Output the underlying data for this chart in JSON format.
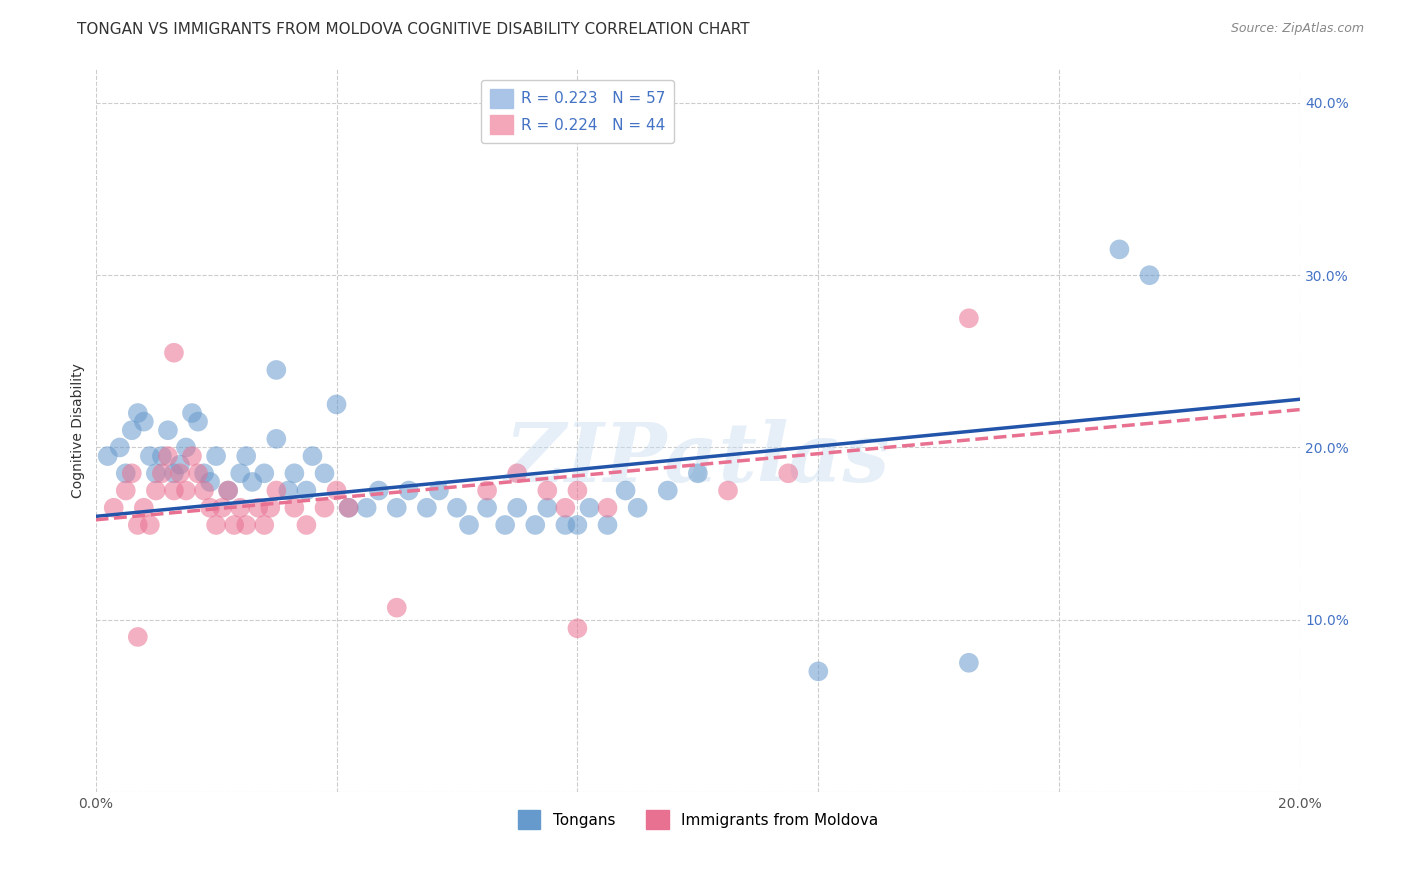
{
  "title": "TONGAN VS IMMIGRANTS FROM MOLDOVA COGNITIVE DISABILITY CORRELATION CHART",
  "source": "Source: ZipAtlas.com",
  "ylabel": "Cognitive Disability",
  "xlim": [
    0.0,
    0.2
  ],
  "ylim": [
    0.0,
    0.42
  ],
  "xticks": [
    0.0,
    0.04,
    0.08,
    0.12,
    0.16,
    0.2
  ],
  "xtick_labels": [
    "0.0%",
    "",
    "",
    "",
    "",
    "20.0%"
  ],
  "yticks": [
    0.0,
    0.1,
    0.2,
    0.3,
    0.4
  ],
  "ytick_labels": [
    "",
    "10.0%",
    "20.0%",
    "30.0%",
    "40.0%"
  ],
  "legend_entries": [
    {
      "label": "R = 0.223   N = 57",
      "color": "#aac4e8"
    },
    {
      "label": "R = 0.224   N = 44",
      "color": "#f4a7b9"
    }
  ],
  "legend_bottom": [
    "Tongans",
    "Immigrants from Moldova"
  ],
  "tongans_color": "#6699cc",
  "moldova_color": "#e87090",
  "tongans_scatter": [
    [
      0.002,
      0.195
    ],
    [
      0.004,
      0.2
    ],
    [
      0.005,
      0.185
    ],
    [
      0.006,
      0.21
    ],
    [
      0.007,
      0.22
    ],
    [
      0.008,
      0.215
    ],
    [
      0.009,
      0.195
    ],
    [
      0.01,
      0.185
    ],
    [
      0.011,
      0.195
    ],
    [
      0.012,
      0.21
    ],
    [
      0.013,
      0.185
    ],
    [
      0.014,
      0.19
    ],
    [
      0.015,
      0.2
    ],
    [
      0.016,
      0.22
    ],
    [
      0.017,
      0.215
    ],
    [
      0.018,
      0.185
    ],
    [
      0.019,
      0.18
    ],
    [
      0.02,
      0.195
    ],
    [
      0.022,
      0.175
    ],
    [
      0.024,
      0.185
    ],
    [
      0.025,
      0.195
    ],
    [
      0.026,
      0.18
    ],
    [
      0.028,
      0.185
    ],
    [
      0.03,
      0.205
    ],
    [
      0.032,
      0.175
    ],
    [
      0.033,
      0.185
    ],
    [
      0.035,
      0.175
    ],
    [
      0.036,
      0.195
    ],
    [
      0.038,
      0.185
    ],
    [
      0.04,
      0.225
    ],
    [
      0.042,
      0.165
    ],
    [
      0.045,
      0.165
    ],
    [
      0.047,
      0.175
    ],
    [
      0.05,
      0.165
    ],
    [
      0.052,
      0.175
    ],
    [
      0.055,
      0.165
    ],
    [
      0.057,
      0.175
    ],
    [
      0.06,
      0.165
    ],
    [
      0.062,
      0.155
    ],
    [
      0.065,
      0.165
    ],
    [
      0.068,
      0.155
    ],
    [
      0.07,
      0.165
    ],
    [
      0.073,
      0.155
    ],
    [
      0.075,
      0.165
    ],
    [
      0.078,
      0.155
    ],
    [
      0.08,
      0.155
    ],
    [
      0.082,
      0.165
    ],
    [
      0.085,
      0.155
    ],
    [
      0.088,
      0.175
    ],
    [
      0.09,
      0.165
    ],
    [
      0.095,
      0.175
    ],
    [
      0.1,
      0.185
    ],
    [
      0.03,
      0.245
    ],
    [
      0.17,
      0.315
    ],
    [
      0.175,
      0.3
    ],
    [
      0.12,
      0.07
    ],
    [
      0.145,
      0.075
    ]
  ],
  "moldova_scatter": [
    [
      0.003,
      0.165
    ],
    [
      0.005,
      0.175
    ],
    [
      0.006,
      0.185
    ],
    [
      0.007,
      0.155
    ],
    [
      0.008,
      0.165
    ],
    [
      0.009,
      0.155
    ],
    [
      0.01,
      0.175
    ],
    [
      0.011,
      0.185
    ],
    [
      0.012,
      0.195
    ],
    [
      0.013,
      0.175
    ],
    [
      0.014,
      0.185
    ],
    [
      0.015,
      0.175
    ],
    [
      0.016,
      0.195
    ],
    [
      0.017,
      0.185
    ],
    [
      0.018,
      0.175
    ],
    [
      0.019,
      0.165
    ],
    [
      0.02,
      0.155
    ],
    [
      0.021,
      0.165
    ],
    [
      0.022,
      0.175
    ],
    [
      0.023,
      0.155
    ],
    [
      0.024,
      0.165
    ],
    [
      0.025,
      0.155
    ],
    [
      0.027,
      0.165
    ],
    [
      0.028,
      0.155
    ],
    [
      0.029,
      0.165
    ],
    [
      0.03,
      0.175
    ],
    [
      0.033,
      0.165
    ],
    [
      0.035,
      0.155
    ],
    [
      0.038,
      0.165
    ],
    [
      0.04,
      0.175
    ],
    [
      0.042,
      0.165
    ],
    [
      0.013,
      0.255
    ],
    [
      0.065,
      0.175
    ],
    [
      0.07,
      0.185
    ],
    [
      0.075,
      0.175
    ],
    [
      0.078,
      0.165
    ],
    [
      0.08,
      0.175
    ],
    [
      0.085,
      0.165
    ],
    [
      0.105,
      0.175
    ],
    [
      0.115,
      0.185
    ],
    [
      0.007,
      0.09
    ],
    [
      0.05,
      0.107
    ],
    [
      0.145,
      0.275
    ],
    [
      0.08,
      0.095
    ]
  ],
  "tongans_trend_x": [
    0.0,
    0.2
  ],
  "tongans_trend_y": [
    0.16,
    0.228
  ],
  "moldova_trend_x": [
    0.0,
    0.2
  ],
  "moldova_trend_y": [
    0.158,
    0.222
  ],
  "watermark": "ZIPatlas",
  "background_color": "#ffffff",
  "grid_color": "#cccccc",
  "title_fontsize": 11,
  "axis_label_fontsize": 10,
  "tick_fontsize": 10,
  "legend_fontsize": 11
}
